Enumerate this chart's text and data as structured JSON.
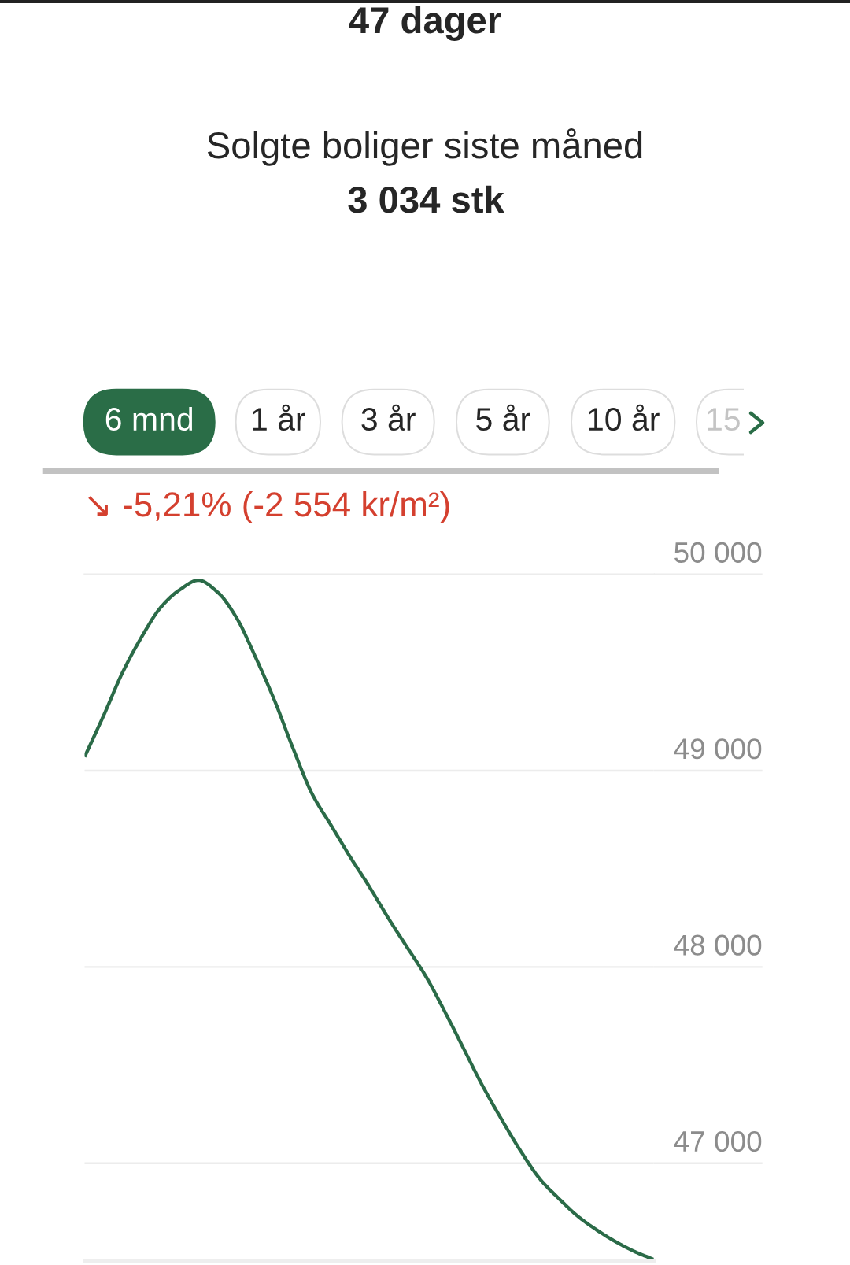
{
  "chart_data": {
    "type": "line",
    "subtitle": "↘ -5,21% (-2 554 kr/m²)",
    "annotations": [
      "47 dager",
      "Solgte boliger siste måned",
      "3 034 stk",
      "6 mnd",
      "1 år",
      "3 år",
      "5 år",
      "10 år",
      "15"
    ],
    "categories": [
      null,
      null,
      null,
      null,
      null,
      null,
      null,
      null,
      null,
      null,
      null,
      null,
      null,
      null,
      null,
      null,
      null,
      null,
      null,
      null,
      null,
      null,
      null,
      null,
      null,
      null,
      null,
      null,
      null,
      null,
      null
    ],
    "series": [
      {
        "color": "#2b6b48",
        "values": [
          49070,
          49280,
          49500,
          49680,
          49830,
          49920,
          49970,
          49910,
          49780,
          49580,
          49360,
          49110,
          48880,
          48720,
          48560,
          48410,
          48250,
          48100,
          47950,
          47770,
          47580,
          47390,
          47220,
          47060,
          46920,
          46820,
          46730,
          46660,
          46600,
          46550,
          46510
        ]
      }
    ],
    "ylim": [
      46500,
      50000
    ],
    "yticks": [
      {
        "value": 47000,
        "label": "47 000"
      },
      {
        "value": 48000,
        "label": "48 000"
      },
      {
        "value": 49000,
        "label": "49 000"
      },
      {
        "value": 50000,
        "label": "50 000"
      }
    ],
    "grid": "y",
    "tick_labels": "y"
  }
}
